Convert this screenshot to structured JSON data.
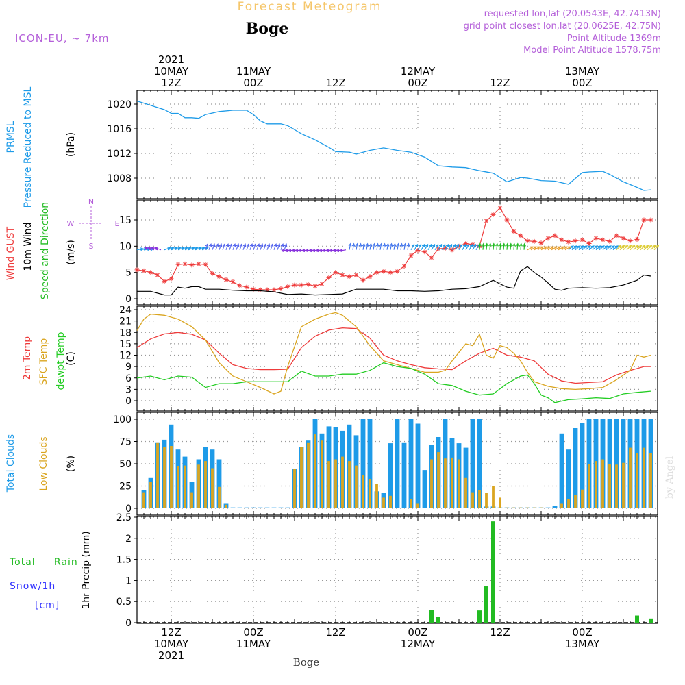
{
  "header": {
    "product_title": "Forecast Meteogram",
    "station_name": "Boge",
    "model": "ICON-EU, ~ 7km",
    "requested": "requested lon,lat (20.0543E, 42.7413N)",
    "grid_point": "grid point closest lon,lat (20.0625E, 42.75N)",
    "point_altitude": "Point Altitude 1369m",
    "model_altitude": "Model Point Altitude 1578.75m",
    "watermark": "by Angel",
    "bottom_label": "Boge"
  },
  "time_axis": {
    "top": [
      {
        "hour": 12,
        "lines": [
          "2021",
          "10MAY",
          "12Z"
        ]
      },
      {
        "hour": 24,
        "lines": [
          "11MAY",
          "00Z"
        ]
      },
      {
        "hour": 36,
        "lines": [
          "12Z"
        ]
      },
      {
        "hour": 48,
        "lines": [
          "12MAY",
          "00Z"
        ]
      },
      {
        "hour": 60,
        "lines": [
          "12Z"
        ]
      },
      {
        "hour": 72,
        "lines": [
          "13MAY",
          "00Z"
        ]
      }
    ],
    "bottom": [
      {
        "hour": 12,
        "lines": [
          "12Z",
          "10MAY",
          "2021"
        ]
      },
      {
        "hour": 24,
        "lines": [
          "00Z",
          "11MAY"
        ]
      },
      {
        "hour": 36,
        "lines": [
          "12Z"
        ]
      },
      {
        "hour": 48,
        "lines": [
          "00Z",
          "12MAY"
        ]
      },
      {
        "hour": 60,
        "lines": [
          "12Z"
        ]
      },
      {
        "hour": 72,
        "lines": [
          "00Z",
          "13MAY"
        ]
      }
    ],
    "start_hour": 7,
    "end_hour": 83
  },
  "colors": {
    "prmsl": "#1e9be8",
    "gust": "#ee3b3b",
    "wind": "#000000",
    "direction": "#22bb22",
    "temp": "#ee3b3b",
    "sfc_temp": "#daa520",
    "dewpt": "#22cc22",
    "total_clouds": "#1e9be8",
    "low_clouds": "#daa520",
    "rain": "#22bb22",
    "snow": "#3333ff",
    "header_purple": "#b45fd9",
    "header_gold": "#f5c66a"
  },
  "chart_data": [
    {
      "type": "line",
      "panel": "pressure",
      "title_lines": [
        "PRMSL",
        "Pressure Reduced to MSL"
      ],
      "ylabel": "(hPa)",
      "ylim": [
        1005.5,
        1021.5
      ],
      "yticks": [
        1008,
        1012,
        1016,
        1020
      ],
      "grid": true,
      "series": [
        {
          "name": "PRMSL",
          "x": [
            7,
            9,
            11,
            12,
            13,
            14,
            15,
            16,
            17,
            19,
            21,
            23,
            24,
            25,
            26,
            28,
            29,
            31,
            33,
            35,
            36,
            38,
            39,
            40,
            41,
            43,
            45,
            47,
            49,
            51,
            53,
            55,
            57,
            59,
            61,
            63,
            64,
            66,
            68,
            70,
            72,
            73,
            75,
            76,
            78,
            80,
            81,
            82
          ],
          "y": [
            1020.5,
            1019.8,
            1019.1,
            1018.5,
            1018.5,
            1017.8,
            1017.8,
            1017.7,
            1018.3,
            1018.8,
            1019.0,
            1019.0,
            1018.3,
            1017.3,
            1016.8,
            1016.8,
            1016.5,
            1015.2,
            1014.2,
            1013.0,
            1012.3,
            1012.2,
            1011.9,
            1012.2,
            1012.5,
            1012.9,
            1012.5,
            1012.2,
            1011.4,
            1010.0,
            1009.8,
            1009.7,
            1009.2,
            1008.8,
            1007.4,
            1008.1,
            1008.0,
            1007.6,
            1007.5,
            1007.0,
            1008.9,
            1009.0,
            1009.1,
            1008.6,
            1007.4,
            1006.5,
            1006.0,
            1006.1
          ]
        }
      ]
    },
    {
      "type": "line",
      "panel": "wind",
      "title_lines": [
        "Wind GUST",
        "10m Wind",
        "Speed and Direction"
      ],
      "ylabel": "(m/s)",
      "compass": {
        "n": "N",
        "s": "S",
        "w": "W",
        "e": "E"
      },
      "ylim": [
        -0.5,
        19
      ],
      "yticks": [
        0,
        5,
        10,
        15
      ],
      "grid": true,
      "series": [
        {
          "name": "Wind GUST",
          "x": [
            7,
            8,
            9,
            10,
            11,
            12,
            13,
            14,
            15,
            16,
            17,
            18,
            19,
            20,
            21,
            22,
            23,
            24,
            25,
            26,
            27,
            28,
            29,
            30,
            31,
            32,
            33,
            34,
            35,
            36,
            37,
            38,
            39,
            40,
            41,
            42,
            43,
            44,
            45,
            46,
            47,
            48,
            49,
            50,
            51,
            52,
            53,
            54,
            55,
            56,
            57,
            58,
            59,
            60,
            61,
            62,
            63,
            64,
            65,
            66,
            67,
            68,
            69,
            70,
            71,
            72,
            73,
            74,
            75,
            76,
            77,
            78,
            79,
            80,
            81,
            82
          ],
          "y": [
            5.5,
            5.3,
            5.0,
            4.5,
            3.3,
            3.8,
            6.5,
            6.6,
            6.4,
            6.6,
            6.5,
            4.8,
            4.2,
            3.6,
            3.2,
            2.5,
            2.2,
            1.8,
            1.7,
            1.7,
            1.7,
            1.9,
            2.3,
            2.6,
            2.6,
            2.7,
            2.4,
            2.8,
            4.0,
            5.0,
            4.5,
            4.2,
            4.5,
            3.5,
            4.2,
            5.0,
            5.2,
            5.0,
            5.2,
            6.2,
            8.2,
            9.2,
            8.9,
            7.8,
            9.5,
            9.6,
            9.3,
            10.0,
            10.5,
            10.3,
            10.0,
            14.8,
            16.0,
            17.3,
            15.0,
            12.8,
            12.0,
            11.0,
            10.9,
            10.6,
            11.5,
            12.0,
            11.2,
            10.8,
            11.0,
            11.2,
            10.5,
            11.5,
            11.2,
            10.9,
            12.0,
            11.5,
            11.0,
            11.3,
            15.0,
            15.0
          ]
        },
        {
          "name": "10m Wind",
          "x": [
            7,
            9,
            11,
            12,
            13,
            14,
            15,
            16,
            17,
            19,
            21,
            23,
            25,
            27,
            29,
            31,
            33,
            35,
            37,
            39,
            41,
            43,
            45,
            47,
            49,
            51,
            53,
            55,
            57,
            59,
            60,
            61,
            62,
            63,
            64,
            65,
            66,
            67,
            68,
            69,
            70,
            72,
            74,
            76,
            78,
            80,
            81,
            82
          ],
          "y": [
            1.4,
            1.4,
            0.7,
            0.7,
            2.2,
            2.0,
            2.3,
            2.3,
            1.8,
            1.8,
            1.6,
            1.5,
            1.5,
            1.3,
            0.8,
            0.9,
            0.7,
            0.8,
            0.9,
            1.8,
            1.8,
            1.8,
            1.5,
            1.5,
            1.4,
            1.5,
            1.8,
            1.9,
            2.3,
            3.5,
            2.8,
            2.2,
            2.0,
            5.3,
            6.1,
            5.0,
            4.1,
            3.0,
            1.8,
            1.6,
            2.0,
            2.1,
            2.0,
            2.1,
            2.6,
            3.5,
            4.5,
            4.3
          ]
        }
      ]
    },
    {
      "type": "line",
      "panel": "temperature",
      "title_lines": [
        "2m Temp",
        "SFC Temp",
        "dewpt Temp"
      ],
      "ylabel": "(C)",
      "ylim": [
        -2.5,
        25
      ],
      "yticks": [
        0,
        3,
        6,
        9,
        12,
        15,
        18,
        21,
        24
      ],
      "grid": true,
      "series": [
        {
          "name": "2m Temp",
          "x": [
            7,
            9,
            11,
            13,
            15,
            17,
            19,
            21,
            23,
            25,
            27,
            29,
            31,
            33,
            35,
            37,
            39,
            41,
            43,
            45,
            47,
            49,
            51,
            53,
            55,
            57,
            59,
            61,
            63,
            65,
            67,
            69,
            71,
            73,
            75,
            77,
            79,
            81,
            82
          ],
          "y": [
            14.0,
            16.3,
            17.6,
            18.0,
            17.5,
            16.0,
            12.5,
            9.5,
            8.5,
            8.2,
            8.2,
            8.3,
            14.0,
            17.0,
            18.6,
            19.2,
            19.0,
            16.5,
            12.0,
            10.5,
            9.5,
            8.7,
            8.4,
            8.2,
            10.5,
            12.5,
            13.8,
            12.0,
            11.5,
            10.5,
            7.0,
            5.2,
            4.6,
            4.8,
            5.0,
            6.8,
            8.0,
            9.0,
            9.0
          ]
        },
        {
          "name": "SFC Temp",
          "x": [
            7,
            8,
            9,
            11,
            13,
            15,
            17,
            18,
            19,
            21,
            23,
            25,
            27,
            28,
            29,
            31,
            33,
            35,
            36,
            37,
            39,
            41,
            43,
            45,
            47,
            49,
            51,
            52,
            53,
            55,
            56,
            57,
            58,
            59,
            60,
            61,
            62,
            63,
            64,
            65,
            67,
            69,
            71,
            73,
            75,
            77,
            79,
            80,
            81,
            82
          ],
          "y": [
            18.5,
            21.5,
            22.8,
            22.5,
            21.5,
            19.5,
            16.0,
            13.0,
            10.0,
            6.5,
            5.0,
            3.5,
            1.8,
            2.5,
            9.0,
            19.5,
            21.5,
            22.8,
            23.2,
            22.5,
            19.5,
            14.5,
            10.5,
            9.5,
            8.5,
            7.5,
            7.5,
            8.0,
            10.5,
            15.0,
            14.5,
            17.5,
            12.0,
            11.2,
            14.5,
            14.0,
            12.5,
            10.5,
            7.5,
            5.0,
            3.8,
            3.2,
            3.0,
            3.2,
            3.5,
            5.5,
            8.0,
            12.0,
            11.5,
            12.0
          ]
        },
        {
          "name": "dewpt Temp",
          "x": [
            7,
            9,
            11,
            13,
            15,
            17,
            19,
            21,
            23,
            25,
            27,
            29,
            31,
            33,
            35,
            37,
            39,
            41,
            43,
            45,
            47,
            49,
            51,
            53,
            55,
            57,
            59,
            61,
            63,
            64,
            65,
            66,
            67,
            68,
            70,
            72,
            74,
            76,
            78,
            80,
            82
          ],
          "y": [
            6.0,
            6.5,
            5.5,
            6.5,
            6.2,
            3.5,
            4.5,
            4.5,
            5.0,
            5.0,
            5.0,
            5.0,
            7.8,
            6.5,
            6.5,
            7.0,
            7.0,
            8.0,
            10.0,
            9.0,
            8.5,
            7.0,
            4.5,
            4.0,
            2.5,
            1.5,
            1.8,
            4.5,
            6.5,
            6.8,
            4.5,
            1.5,
            0.8,
            -0.5,
            0.3,
            0.5,
            0.8,
            0.6,
            1.8,
            2.2,
            2.5
          ]
        }
      ]
    },
    {
      "type": "bar",
      "panel": "clouds",
      "title_lines": [
        "Total Clouds",
        "Low Clouds"
      ],
      "ylabel": "(%)",
      "ylim": [
        0,
        104
      ],
      "yticks": [
        0,
        25,
        50,
        75,
        100
      ],
      "grid": true,
      "x": [
        7,
        8,
        9,
        10,
        11,
        12,
        13,
        14,
        15,
        16,
        17,
        18,
        19,
        20,
        21,
        22,
        23,
        24,
        25,
        26,
        27,
        28,
        29,
        30,
        31,
        32,
        33,
        34,
        35,
        36,
        37,
        38,
        39,
        40,
        41,
        42,
        43,
        44,
        45,
        46,
        47,
        48,
        49,
        50,
        51,
        52,
        53,
        54,
        55,
        56,
        57,
        58,
        59,
        60,
        61,
        62,
        63,
        64,
        65,
        66,
        67,
        68,
        69,
        70,
        71,
        72,
        73,
        74,
        75,
        76,
        77,
        78,
        79,
        80,
        81,
        82
      ],
      "series": [
        {
          "name": "Total Clouds",
          "values": [
            0,
            20,
            34,
            74,
            77,
            94,
            66,
            58,
            30,
            55,
            69,
            66,
            55,
            5,
            1,
            1,
            1,
            1,
            1,
            1,
            1,
            1,
            1,
            44,
            69,
            76,
            100,
            84,
            92,
            91,
            87,
            94,
            82,
            100,
            100,
            19,
            17,
            73,
            100,
            74,
            100,
            95,
            43,
            71,
            80,
            100,
            79,
            73,
            68,
            100,
            100,
            2,
            2,
            1,
            1,
            1,
            1,
            1,
            1,
            1,
            1,
            3,
            84,
            66,
            90,
            96,
            100,
            100,
            100,
            100,
            100,
            100,
            100,
            100,
            100,
            100
          ]
        },
        {
          "name": "Low Clouds",
          "values": [
            0,
            18,
            30,
            74,
            69,
            70,
            47,
            48,
            18,
            49,
            53,
            45,
            24,
            4,
            0,
            0,
            0,
            0,
            0,
            0,
            0,
            0,
            0,
            44,
            69,
            74,
            83,
            76,
            53,
            55,
            58,
            53,
            48,
            37,
            33,
            27,
            12,
            14,
            0,
            0,
            10,
            5,
            0,
            55,
            63,
            56,
            57,
            55,
            34,
            18,
            20,
            17,
            25,
            12,
            1,
            1,
            1,
            1,
            1,
            1,
            0,
            0,
            5,
            10,
            15,
            21,
            50,
            53,
            55,
            50,
            49,
            51,
            68,
            62,
            68,
            62
          ]
        }
      ]
    },
    {
      "type": "bar",
      "panel": "precipitation",
      "title_lines": [
        "Total",
        "Rain",
        "Snow/1h",
        "[cm]"
      ],
      "ylabel": "1hr Precip (mm)",
      "ylim": [
        0,
        2.5
      ],
      "yticks": [
        0,
        0.5,
        1,
        1.5,
        2,
        2.5
      ],
      "grid": true,
      "series": [
        {
          "name": "Rain",
          "x": [
            50,
            51,
            57,
            58,
            59,
            80,
            82
          ],
          "values": [
            0.3,
            0.13,
            0.29,
            0.86,
            2.4,
            0.17,
            0.1
          ]
        }
      ]
    }
  ]
}
